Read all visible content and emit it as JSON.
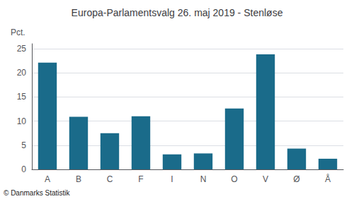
{
  "chart_data": {
    "type": "bar",
    "title": "Europa-Parlamentsvalg 26. maj 2019 - Stenløse",
    "categories": [
      "A",
      "B",
      "C",
      "F",
      "I",
      "N",
      "O",
      "V",
      "Ø",
      "Å"
    ],
    "values": [
      22.1,
      10.9,
      7.5,
      11.0,
      3.1,
      3.3,
      12.6,
      23.8,
      4.3,
      2.2
    ],
    "color": "#1a6b8a",
    "ylabel": "Pct.",
    "ylim": [
      0,
      26
    ],
    "yticks": [
      0,
      5,
      10,
      15,
      20,
      25
    ],
    "grid": true,
    "annotations": [
      "© Danmarks Statistik"
    ]
  }
}
